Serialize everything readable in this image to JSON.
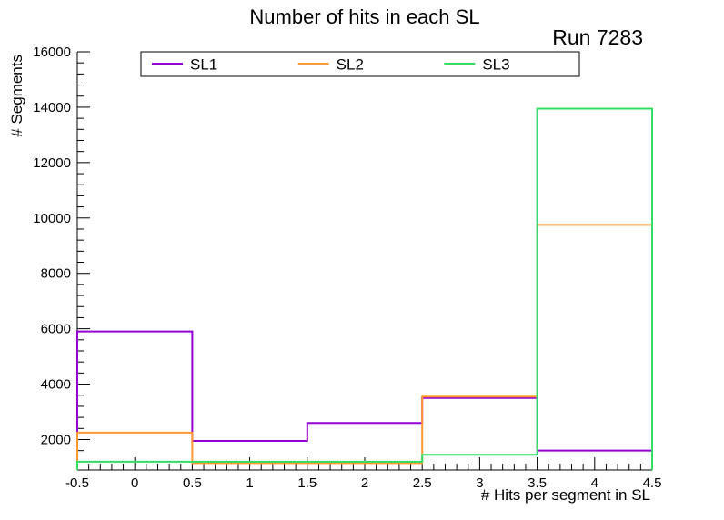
{
  "page": {
    "background": "#ffffff"
  },
  "chart_data": {
    "type": "step-histogram",
    "title": "Number of hits in each SL",
    "annotation": "Run 7283",
    "xlabel": "# Hits per segment in SL",
    "ylabel": "# Segments",
    "xlim": [
      -0.5,
      4.5
    ],
    "ylim": [
      900,
      16000
    ],
    "grid": false,
    "bin_edges": [
      -0.5,
      0.5,
      1.5,
      2.5,
      3.5,
      4.5
    ],
    "x_major_ticks": [
      -0.5,
      0,
      0.5,
      1,
      1.5,
      2,
      2.5,
      3,
      3.5,
      4,
      4.5
    ],
    "x_tick_labels": [
      "-0.5",
      "0",
      "0.5",
      "1",
      "1.5",
      "2",
      "2.5",
      "3",
      "3.5",
      "4",
      "4.5"
    ],
    "x_minor_step": 0.1,
    "y_major_ticks": [
      2000,
      4000,
      6000,
      8000,
      10000,
      12000,
      14000,
      16000
    ],
    "y_tick_labels": [
      "2000",
      "4000",
      "6000",
      "8000",
      "10000",
      "12000",
      "14000",
      "16000"
    ],
    "y_minor_step": 400,
    "axis_color": "#000000",
    "series": [
      {
        "name": "SL1",
        "color": "#9400d3",
        "values": [
          5900,
          1950,
          2600,
          3500,
          1600
        ]
      },
      {
        "name": "SL2",
        "color": "#ff9933",
        "values": [
          2250,
          1150,
          1150,
          3550,
          9750
        ]
      },
      {
        "name": "SL3",
        "color": "#33dd66",
        "values": [
          1200,
          1200,
          1200,
          1450,
          13950
        ]
      }
    ],
    "legend": {
      "position": "top",
      "entries": [
        "SL1",
        "SL2",
        "SL3"
      ]
    }
  }
}
